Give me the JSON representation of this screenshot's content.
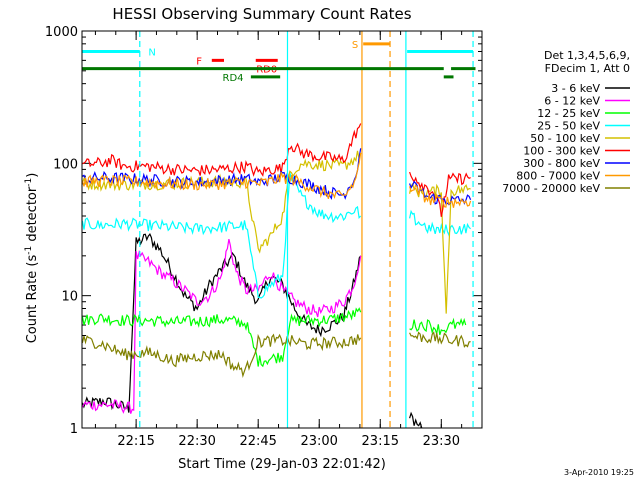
{
  "chart_data": {
    "type": "line",
    "title": "HESSI Observing Summary Count Rates",
    "xlabel": "Start Time (29-Jan-03 22:01:42)",
    "ylabel_main": "Count Rate (s",
    "ylabel_sup1": "-1",
    "ylabel_mid": " detector",
    "ylabel_sup2": "-1",
    "ylabel_end": ")",
    "yscale": "log",
    "ylim": [
      1,
      1000
    ],
    "xlim": [
      22.02833,
      23.66667
    ],
    "xticks": [
      {
        "label": "22:15",
        "value": 22.25
      },
      {
        "label": "22:30",
        "value": 22.5
      },
      {
        "label": "22:45",
        "value": 22.75
      },
      {
        "label": "23:00",
        "value": 23.0
      },
      {
        "label": "23:15",
        "value": 23.25
      },
      {
        "label": "23:30",
        "value": 23.5
      }
    ],
    "yticks": [
      {
        "label": "1",
        "value": 1
      },
      {
        "label": "10",
        "value": 10
      },
      {
        "label": "100",
        "value": 100
      },
      {
        "label": "1000",
        "value": 1000
      }
    ],
    "legend_position": "right",
    "legend_header": [
      "Det 1,3,4,5,6,9,",
      "FDecim 1, Att 0"
    ],
    "series": [
      {
        "name": "3 - 6 keV",
        "color": "#000000",
        "points": [
          [
            22.03,
            1.5
          ],
          [
            22.12,
            1.6
          ],
          [
            22.22,
            1.4
          ],
          [
            22.25,
            25
          ],
          [
            22.3,
            28
          ],
          [
            22.35,
            22
          ],
          [
            22.4,
            15
          ],
          [
            22.45,
            10
          ],
          [
            22.5,
            8
          ],
          [
            22.55,
            12
          ],
          [
            22.6,
            16
          ],
          [
            22.65,
            20
          ],
          [
            22.7,
            12
          ],
          [
            22.75,
            9
          ],
          [
            22.8,
            14
          ],
          [
            22.85,
            12
          ],
          [
            22.9,
            8
          ],
          [
            22.95,
            6
          ],
          [
            23.0,
            5.5
          ],
          [
            23.05,
            6
          ],
          [
            23.1,
            7
          ],
          [
            23.14,
            12
          ],
          [
            23.17,
            20
          ]
        ]
      },
      {
        "name": "6 - 12 keV",
        "color": "#ff00ff",
        "points": [
          [
            22.03,
            1.5
          ],
          [
            22.15,
            1.5
          ],
          [
            22.24,
            1.4
          ],
          [
            22.25,
            20
          ],
          [
            22.3,
            18
          ],
          [
            22.35,
            15
          ],
          [
            22.4,
            13
          ],
          [
            22.45,
            11
          ],
          [
            22.5,
            9
          ],
          [
            22.55,
            10
          ],
          [
            22.6,
            14
          ],
          [
            22.63,
            26
          ],
          [
            22.66,
            15
          ],
          [
            22.7,
            11
          ],
          [
            22.75,
            11
          ],
          [
            22.8,
            15
          ],
          [
            22.85,
            11
          ],
          [
            22.9,
            9
          ],
          [
            22.95,
            8
          ],
          [
            23.0,
            7.5
          ],
          [
            23.05,
            8
          ],
          [
            23.1,
            9
          ],
          [
            23.14,
            12
          ],
          [
            23.17,
            20
          ]
        ]
      },
      {
        "name": "12 - 25 keV",
        "color": "#00ff00",
        "points": [
          [
            22.03,
            6.5
          ],
          [
            22.1,
            6.8
          ],
          [
            22.2,
            6.5
          ],
          [
            22.3,
            6.5
          ],
          [
            22.4,
            6.3
          ],
          [
            22.5,
            6.4
          ],
          [
            22.6,
            6.6
          ],
          [
            22.7,
            6.2
          ],
          [
            22.75,
            3.2
          ],
          [
            22.85,
            3.5
          ],
          [
            22.88,
            6.4
          ],
          [
            22.95,
            6.5
          ],
          [
            23.05,
            6.6
          ],
          [
            23.12,
            7.0
          ],
          [
            23.17,
            7.5
          ]
        ]
      },
      {
        "name": "25 - 50 keV",
        "color": "#00ffff",
        "points": [
          [
            22.03,
            35
          ],
          [
            22.1,
            34
          ],
          [
            22.2,
            35
          ],
          [
            22.3,
            34
          ],
          [
            22.4,
            33
          ],
          [
            22.5,
            32
          ],
          [
            22.6,
            33
          ],
          [
            22.7,
            34
          ],
          [
            22.75,
            10
          ],
          [
            22.8,
            12
          ],
          [
            22.85,
            14
          ],
          [
            22.88,
            80
          ],
          [
            22.93,
            55
          ],
          [
            23.0,
            42
          ],
          [
            23.05,
            40
          ],
          [
            23.1,
            40
          ],
          [
            23.15,
            45
          ],
          [
            23.17,
            40
          ]
        ]
      },
      {
        "name": "50 - 100 keV",
        "color": "#d4c000",
        "points": [
          [
            22.03,
            70
          ],
          [
            22.1,
            70
          ],
          [
            22.2,
            69
          ],
          [
            22.3,
            70
          ],
          [
            22.4,
            70
          ],
          [
            22.5,
            72
          ],
          [
            22.6,
            73
          ],
          [
            22.7,
            72
          ],
          [
            22.75,
            22
          ],
          [
            22.8,
            28
          ],
          [
            22.85,
            40
          ],
          [
            22.88,
            85
          ],
          [
            22.93,
            100
          ],
          [
            23.0,
            98
          ],
          [
            23.1,
            95
          ],
          [
            23.15,
            110
          ],
          [
            23.17,
            120
          ]
        ]
      },
      {
        "name": "100 - 300 keV",
        "color": "#ff0000",
        "points": [
          [
            22.03,
            98
          ],
          [
            22.1,
            100
          ],
          [
            22.15,
            105
          ],
          [
            22.2,
            95
          ],
          [
            22.3,
            95
          ],
          [
            22.4,
            90
          ],
          [
            22.5,
            88
          ],
          [
            22.6,
            90
          ],
          [
            22.7,
            95
          ],
          [
            22.75,
            85
          ],
          [
            22.8,
            90
          ],
          [
            22.85,
            92
          ],
          [
            22.88,
            140
          ],
          [
            22.93,
            120
          ],
          [
            23.0,
            112
          ],
          [
            23.05,
            110
          ],
          [
            23.1,
            105
          ],
          [
            23.15,
            170
          ],
          [
            23.17,
            200
          ]
        ]
      },
      {
        "name": "300 - 800 keV",
        "color": "#0000ff",
        "points": [
          [
            22.03,
            75
          ],
          [
            22.1,
            78
          ],
          [
            22.2,
            77
          ],
          [
            22.3,
            75
          ],
          [
            22.4,
            73
          ],
          [
            22.5,
            72
          ],
          [
            22.6,
            74
          ],
          [
            22.7,
            76
          ],
          [
            22.75,
            72
          ],
          [
            22.8,
            75
          ],
          [
            22.85,
            80
          ],
          [
            22.9,
            76
          ],
          [
            22.95,
            70
          ],
          [
            23.0,
            65
          ],
          [
            23.05,
            60
          ],
          [
            23.1,
            58
          ],
          [
            23.15,
            80
          ],
          [
            23.17,
            130
          ]
        ]
      },
      {
        "name": "800 - 7000 keV",
        "color": "#ff9900",
        "points": [
          [
            22.03,
            72
          ],
          [
            22.1,
            74
          ],
          [
            22.2,
            73
          ],
          [
            22.3,
            72
          ],
          [
            22.4,
            70
          ],
          [
            22.5,
            69
          ],
          [
            22.6,
            70
          ],
          [
            22.7,
            72
          ],
          [
            22.75,
            70
          ],
          [
            22.8,
            73
          ],
          [
            22.85,
            78
          ],
          [
            22.9,
            75
          ],
          [
            22.95,
            68
          ],
          [
            23.0,
            62
          ],
          [
            23.05,
            58
          ],
          [
            23.1,
            55
          ],
          [
            23.15,
            75
          ],
          [
            23.17,
            120
          ]
        ]
      },
      {
        "name": "7000 - 20000 keV",
        "color": "#808000",
        "points": [
          [
            22.03,
            4.6
          ],
          [
            22.1,
            4.4
          ],
          [
            22.15,
            4.0
          ],
          [
            22.2,
            3.6
          ],
          [
            22.3,
            3.7
          ],
          [
            22.35,
            3.5
          ],
          [
            22.4,
            3.2
          ],
          [
            22.5,
            3.5
          ],
          [
            22.6,
            3.6
          ],
          [
            22.65,
            2.9
          ],
          [
            22.7,
            2.7
          ],
          [
            22.75,
            4.5
          ],
          [
            22.85,
            4.6
          ],
          [
            22.9,
            4.5
          ],
          [
            22.95,
            4.3
          ],
          [
            23.05,
            4.4
          ],
          [
            23.12,
            4.5
          ],
          [
            23.17,
            4.8
          ]
        ]
      }
    ],
    "post_gap_series": [
      {
        "color": "#000000",
        "points": [
          [
            23.37,
            1.2
          ],
          [
            23.42,
            1.0
          ]
        ]
      },
      {
        "color": "#00ff00",
        "points": [
          [
            23.37,
            6.0
          ],
          [
            23.45,
            6.0
          ],
          [
            23.5,
            5.5
          ],
          [
            23.55,
            6.0
          ],
          [
            23.6,
            6.0
          ]
        ]
      },
      {
        "color": "#00ffff",
        "points": [
          [
            23.37,
            40
          ],
          [
            23.45,
            32
          ],
          [
            23.5,
            31
          ],
          [
            23.55,
            32
          ],
          [
            23.62,
            32
          ]
        ]
      },
      {
        "color": "#d4c000",
        "points": [
          [
            23.37,
            65
          ],
          [
            23.42,
            60
          ],
          [
            23.5,
            62
          ],
          [
            23.52,
            7
          ],
          [
            23.54,
            62
          ],
          [
            23.62,
            64
          ]
        ]
      },
      {
        "color": "#ff0000",
        "points": [
          [
            23.37,
            85
          ],
          [
            23.42,
            70
          ],
          [
            23.47,
            60
          ],
          [
            23.5,
            42
          ],
          [
            23.53,
            75
          ],
          [
            23.62,
            78
          ]
        ]
      },
      {
        "color": "#0000ff",
        "points": [
          [
            23.37,
            70
          ],
          [
            23.45,
            55
          ],
          [
            23.55,
            52
          ],
          [
            23.62,
            53
          ]
        ]
      },
      {
        "color": "#ff9900",
        "points": [
          [
            23.37,
            68
          ],
          [
            23.45,
            53
          ],
          [
            23.55,
            51
          ],
          [
            23.62,
            52
          ]
        ]
      },
      {
        "color": "#808000",
        "points": [
          [
            23.37,
            5.0
          ],
          [
            23.45,
            4.8
          ],
          [
            23.55,
            4.6
          ],
          [
            23.62,
            4.5
          ]
        ]
      }
    ],
    "flag_lines": [
      {
        "color": "#00ffff",
        "style": "dashed",
        "x": 22.265
      },
      {
        "color": "#00ffff",
        "style": "solid",
        "x": 22.87
      },
      {
        "color": "#ff9900",
        "style": "solid",
        "x": 23.175
      },
      {
        "color": "#ff9900",
        "style": "dashed",
        "x": 23.29
      },
      {
        "color": "#00ffff",
        "style": "solid",
        "x": 23.355
      },
      {
        "color": "#00ffff",
        "style": "dashed",
        "x": 23.63
      }
    ],
    "flag_bars": [
      {
        "label": "N",
        "color": "#00ffff",
        "y": 700,
        "x0": 22.03,
        "x1": 22.265,
        "label_x": 22.3,
        "label_side": "right"
      },
      {
        "label": "",
        "color": "#00ffff",
        "y": 700,
        "x0": 23.36,
        "x1": 23.63
      },
      {
        "label": "S",
        "color": "#ff9900",
        "y": 800,
        "x0": 23.18,
        "x1": 23.29,
        "label_x": 23.16,
        "label_side": "left"
      },
      {
        "label": "F",
        "color": "#ff0000",
        "y": 600,
        "x0": 22.56,
        "x1": 22.61,
        "label_x": 22.52,
        "label_side": "left"
      },
      {
        "label": "RD0",
        "color": "#ff0000",
        "y": 600,
        "x0": 22.74,
        "x1": 22.83,
        "label_x": 22.785,
        "label_side": "below"
      },
      {
        "label": "",
        "color": "#007700",
        "y": 520,
        "x0": 22.03,
        "x1": 23.51
      },
      {
        "label": "",
        "color": "#007700",
        "y": 520,
        "x0": 23.54,
        "x1": 23.64
      },
      {
        "label": "RD4",
        "color": "#007700",
        "y": 450,
        "x0": 22.72,
        "x1": 22.84,
        "label_x": 22.69,
        "label_side": "left"
      },
      {
        "label": "",
        "color": "#007700",
        "y": 450,
        "x0": 23.51,
        "x1": 23.55
      }
    ],
    "timestamp": "3-Apr-2010 19:25"
  }
}
